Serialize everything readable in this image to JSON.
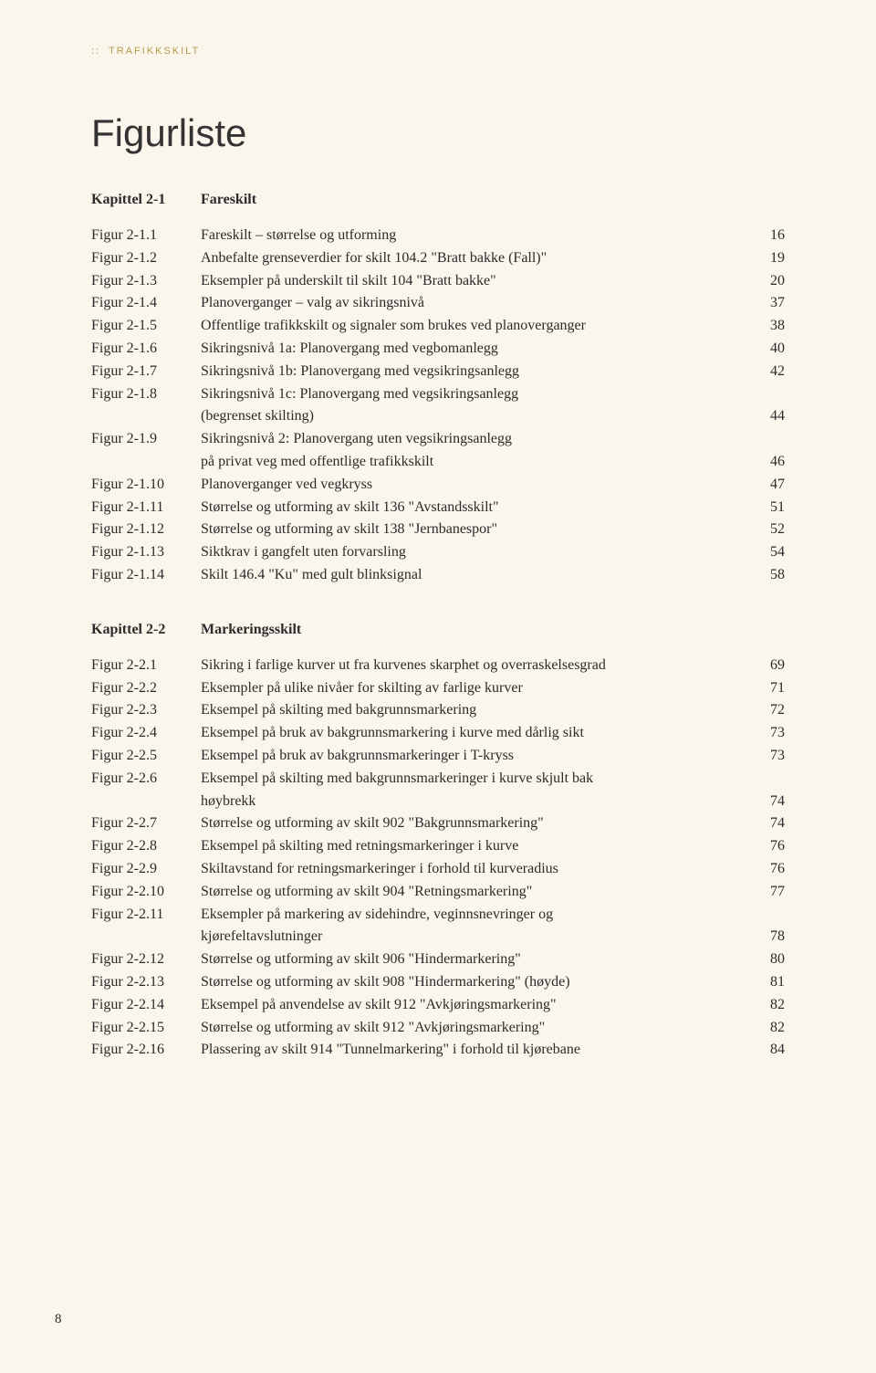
{
  "running_header": {
    "prefix": "::",
    "text": "TRAFIKKSKILT"
  },
  "title": "Figurliste",
  "page_number": "8",
  "sections": [
    {
      "chapter_label": "Kapittel 2-1",
      "chapter_title": "Fareskilt",
      "entries": [
        {
          "label": "Figur 2-1.1",
          "lines": [
            "Fareskilt – størrelse og utforming"
          ],
          "page": "16"
        },
        {
          "label": "Figur 2-1.2",
          "lines": [
            "Anbefalte grenseverdier for skilt 104.2 \"Bratt bakke (Fall)\""
          ],
          "page": "19"
        },
        {
          "label": "Figur 2-1.3",
          "lines": [
            "Eksempler på underskilt til skilt 104 \"Bratt bakke\""
          ],
          "page": "20"
        },
        {
          "label": "Figur 2-1.4",
          "lines": [
            "Planoverganger – valg av sikringsnivå"
          ],
          "page": "37"
        },
        {
          "label": "Figur 2-1.5",
          "lines": [
            "Offentlige trafikkskilt og signaler som brukes ved planoverganger"
          ],
          "page": "38"
        },
        {
          "label": "Figur 2-1.6",
          "lines": [
            "Sikringsnivå 1a: Planovergang med vegbomanlegg"
          ],
          "page": "40"
        },
        {
          "label": "Figur 2-1.7",
          "lines": [
            "Sikringsnivå 1b: Planovergang med vegsikringsanlegg"
          ],
          "page": "42"
        },
        {
          "label": "Figur 2-1.8",
          "lines": [
            "Sikringsnivå 1c: Planovergang med vegsikringsanlegg",
            "(begrenset skilting)"
          ],
          "page": "44"
        },
        {
          "label": "Figur 2-1.9",
          "lines": [
            "Sikringsnivå 2:  Planovergang uten vegsikringsanlegg",
            "på privat veg med offentlige trafikkskilt"
          ],
          "page": "46"
        },
        {
          "label": "Figur 2-1.10",
          "lines": [
            "Planoverganger ved vegkryss"
          ],
          "page": "47"
        },
        {
          "label": "Figur 2-1.11",
          "lines": [
            "Størrelse og utforming av skilt 136 \"Avstandsskilt\""
          ],
          "page": "51"
        },
        {
          "label": "Figur 2-1.12",
          "lines": [
            "Størrelse og utforming av skilt 138 \"Jernbanespor\""
          ],
          "page": "52"
        },
        {
          "label": "Figur 2-1.13",
          "lines": [
            "Siktkrav i gangfelt uten forvarsling"
          ],
          "page": "54"
        },
        {
          "label": "Figur 2-1.14",
          "lines": [
            "Skilt 146.4 \"Ku\" med gult blinksignal"
          ],
          "page": "58"
        }
      ]
    },
    {
      "chapter_label": "Kapittel 2-2",
      "chapter_title": "Markeringsskilt",
      "entries": [
        {
          "label": "Figur 2-2.1",
          "lines": [
            "Sikring i farlige kurver ut fra kurvenes skarphet og overraskelsesgrad"
          ],
          "page": "69"
        },
        {
          "label": "Figur 2-2.2",
          "lines": [
            "Eksempler på ulike nivåer for skilting av farlige kurver"
          ],
          "page": "71"
        },
        {
          "label": "Figur 2-2.3",
          "lines": [
            "Eksempel på skilting med bakgrunnsmarkering"
          ],
          "page": "72"
        },
        {
          "label": "Figur 2-2.4",
          "lines": [
            "Eksempel på bruk av bakgrunnsmarkering i kurve med dårlig sikt"
          ],
          "page": "73"
        },
        {
          "label": "Figur 2-2.5",
          "lines": [
            "Eksempel på bruk av bakgrunnsmarkeringer i T-kryss"
          ],
          "page": "73"
        },
        {
          "label": "Figur 2-2.6",
          "lines": [
            "Eksempel på skilting med bakgrunnsmarkeringer i kurve skjult bak",
            "høybrekk"
          ],
          "page": "74"
        },
        {
          "label": "Figur 2-2.7",
          "lines": [
            "Størrelse og utforming av skilt 902 \"Bakgrunnsmarkering\""
          ],
          "page": "74"
        },
        {
          "label": "Figur 2-2.8",
          "lines": [
            "Eksempel på skilting med retningsmarkeringer i kurve"
          ],
          "page": "76"
        },
        {
          "label": "Figur 2-2.9",
          "lines": [
            "Skiltavstand for retningsmarkeringer i forhold til kurveradius"
          ],
          "page": "76"
        },
        {
          "label": "Figur 2-2.10",
          "lines": [
            "Størrelse og utforming av skilt 904 \"Retningsmarkering\""
          ],
          "page": "77"
        },
        {
          "label": "Figur 2-2.11",
          "lines": [
            "Eksempler på markering av sidehindre, veginnsnevringer og",
            "kjørefeltavslutninger"
          ],
          "page": "78"
        },
        {
          "label": "Figur 2-2.12",
          "lines": [
            "Størrelse og utforming av skilt 906 \"Hindermarkering\""
          ],
          "page": "80"
        },
        {
          "label": "Figur 2-2.13",
          "lines": [
            "Størrelse og utforming av skilt 908 \"Hindermarkering\" (høyde)"
          ],
          "page": "81"
        },
        {
          "label": "Figur 2-2.14",
          "lines": [
            "Eksempel på anvendelse av skilt 912 \"Avkjøringsmarkering\""
          ],
          "page": "82"
        },
        {
          "label": "Figur 2-2.15",
          "lines": [
            "Størrelse og utforming av skilt 912 \"Avkjøringsmarkering\""
          ],
          "page": "82"
        },
        {
          "label": "Figur 2-2.16",
          "lines": [
            "Plassering av skilt 914 \"Tunnelmarkering\" i forhold til kjørebane"
          ],
          "page": "84"
        }
      ]
    }
  ]
}
